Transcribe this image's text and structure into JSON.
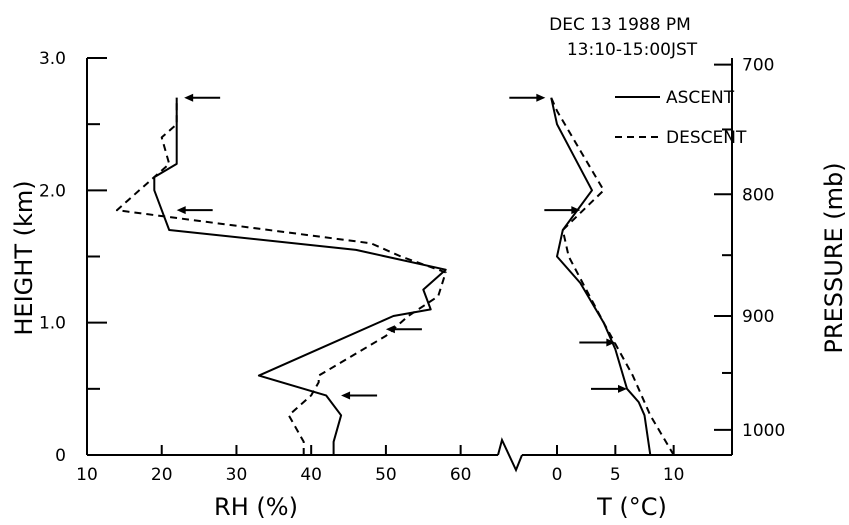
{
  "header": {
    "date": "DEC 13 1988  PM",
    "time_range": "13:10-15:00JST"
  },
  "chart_data": {
    "type": "line",
    "ylabel_left": "HEIGHT (km)",
    "ylabel_right": "PRESSURE (mb)",
    "y_range": [
      0,
      3.0
    ],
    "y_ticks": [
      0,
      1.0,
      2.0,
      3.0
    ],
    "y_tick_labels": [
      "0",
      "1.0",
      "2.0",
      "3.0"
    ],
    "pressure_ticks": [
      {
        "label": "700",
        "height": 2.95
      },
      {
        "label": "800",
        "height": 1.97
      },
      {
        "label": "900",
        "height": 1.05
      },
      {
        "label": "1000",
        "height": 0.19
      }
    ],
    "legend": [
      {
        "name": "ASCENT",
        "style": "solid"
      },
      {
        "name": "DESCENT",
        "style": "dashed"
      }
    ],
    "left_panel": {
      "xlabel": "RH (%)",
      "x_range": [
        10,
        65
      ],
      "x_ticks": [
        10,
        20,
        30,
        40,
        50,
        60
      ],
      "x_tick_labels": [
        "10",
        "20",
        "30",
        "40",
        "50",
        "60"
      ],
      "series": [
        {
          "name": "ASCENT",
          "style": "solid",
          "points": [
            [
              43,
              0
            ],
            [
              43,
              0.1
            ],
            [
              44,
              0.3
            ],
            [
              42,
              0.45
            ],
            [
              33,
              0.6
            ],
            [
              41,
              0.8
            ],
            [
              51,
              1.05
            ],
            [
              56,
              1.1
            ],
            [
              55,
              1.25
            ],
            [
              58,
              1.4
            ],
            [
              46,
              1.55
            ],
            [
              21,
              1.7
            ],
            [
              19,
              2.0
            ],
            [
              19,
              2.1
            ],
            [
              22,
              2.2
            ],
            [
              22,
              2.5
            ],
            [
              22,
              2.7
            ]
          ]
        },
        {
          "name": "DESCENT",
          "style": "dashed",
          "points": [
            [
              39,
              0
            ],
            [
              39,
              0.1
            ],
            [
              37,
              0.3
            ],
            [
              40,
              0.45
            ],
            [
              41,
              0.55
            ],
            [
              41,
              0.6
            ],
            [
              44,
              0.7
            ],
            [
              50,
              0.9
            ],
            [
              53,
              1.05
            ],
            [
              57,
              1.2
            ],
            [
              58,
              1.38
            ],
            [
              52,
              1.5
            ],
            [
              48,
              1.6
            ],
            [
              14,
              1.85
            ],
            [
              17,
              2.0
            ],
            [
              21,
              2.2
            ],
            [
              20,
              2.4
            ],
            [
              22,
              2.5
            ],
            [
              22,
              2.7
            ]
          ]
        }
      ],
      "arrows": [
        [
          23,
          2.7
        ],
        [
          22,
          1.85
        ],
        [
          50,
          0.95
        ],
        [
          44,
          0.45
        ]
      ]
    },
    "right_panel": {
      "xlabel": "T (°C)",
      "x_range": [
        -3,
        15
      ],
      "x_ticks": [
        0,
        5,
        10
      ],
      "x_tick_labels": [
        "0",
        "5",
        "10"
      ],
      "series": [
        {
          "name": "ASCENT",
          "style": "solid",
          "points": [
            [
              8,
              0
            ],
            [
              7.5,
              0.3
            ],
            [
              7,
              0.4
            ],
            [
              6,
              0.5
            ],
            [
              5,
              0.8
            ],
            [
              4,
              1.0
            ],
            [
              2,
              1.3
            ],
            [
              0,
              1.5
            ],
            [
              0.5,
              1.7
            ],
            [
              3,
              2.0
            ],
            [
              1.5,
              2.25
            ],
            [
              0,
              2.5
            ],
            [
              -0.5,
              2.7
            ]
          ]
        },
        {
          "name": "DESCENT",
          "style": "dashed",
          "points": [
            [
              10,
              0
            ],
            [
              8,
              0.3
            ],
            [
              6.5,
              0.6
            ],
            [
              4,
              1.0
            ],
            [
              1,
              1.5
            ],
            [
              0.5,
              1.7
            ],
            [
              4,
              2.0
            ],
            [
              2,
              2.3
            ],
            [
              0,
              2.6
            ],
            [
              -0.5,
              2.7
            ]
          ]
        }
      ],
      "arrows": [
        [
          -1,
          2.7
        ],
        [
          2,
          1.85
        ],
        [
          5,
          0.85
        ],
        [
          6,
          0.5
        ]
      ]
    }
  }
}
